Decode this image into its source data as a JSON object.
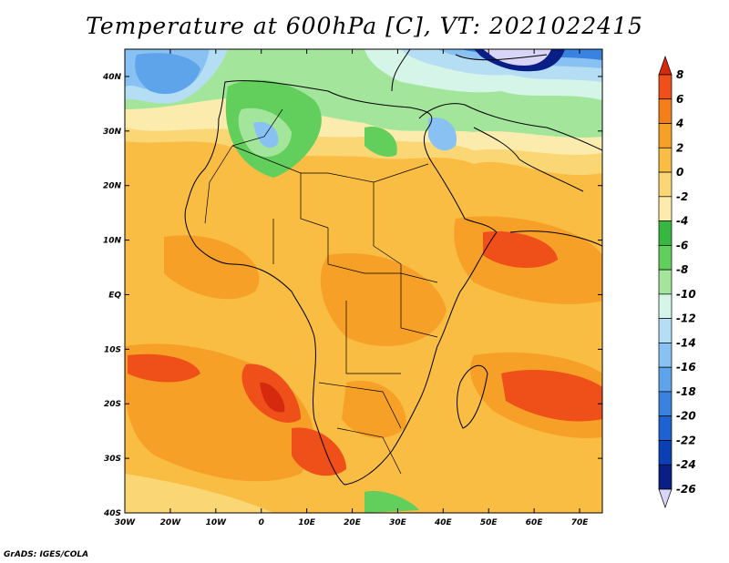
{
  "title": "Temperature at 600hPa [C], VT: 2021022415",
  "footer": "GrADS: IGES/COLA",
  "map": {
    "region": "Africa",
    "lon_range": [
      -30,
      75
    ],
    "lat_range": [
      -40,
      45
    ],
    "x_ticks": [
      "30W",
      "20W",
      "10W",
      "0",
      "10E",
      "20E",
      "30E",
      "40E",
      "50E",
      "60E",
      "70E"
    ],
    "y_ticks": [
      "40N",
      "30N",
      "20N",
      "10N",
      "EQ",
      "10S",
      "20S",
      "30S",
      "40S"
    ]
  },
  "colorbar": {
    "labels": [
      "8",
      "6",
      "4",
      "2",
      "0",
      "-2",
      "-4",
      "-6",
      "-8",
      "-10",
      "-12",
      "-14",
      "-16",
      "-18",
      "-20",
      "-22",
      "-24",
      "-26"
    ],
    "colors": [
      "#d62a0f",
      "#ef4f19",
      "#f47f1a",
      "#f7a027",
      "#f8bd42",
      "#fad675",
      "#fbecae",
      "#35b740",
      "#62cf5c",
      "#a3e69b",
      "#d5f5e9",
      "#b5def5",
      "#89c2f2",
      "#5ea4ea",
      "#3982e0",
      "#1d62d0",
      "#0b40b4",
      "#091f86",
      "#d9d5f6"
    ]
  }
}
